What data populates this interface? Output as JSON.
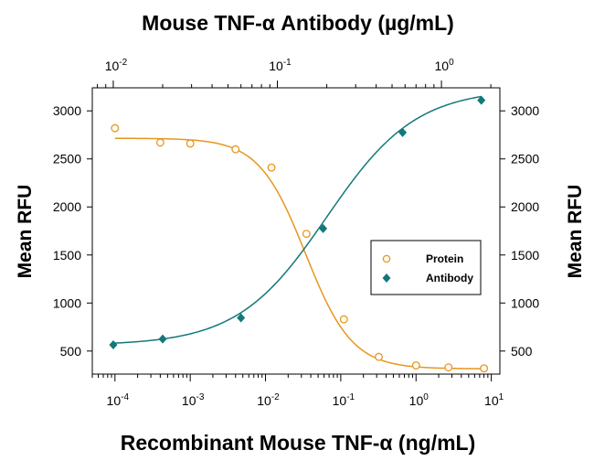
{
  "chart_data": {
    "type": "scatter",
    "title_top": "Mouse TNF-α Antibody (µg/mL)",
    "xlabel": "Recombinant Mouse TNF-α (ng/mL)",
    "ylabel_left": "Mean RFU",
    "ylabel_right": "Mean RFU",
    "x_scale": "log",
    "xlim": [
      5e-05,
      13
    ],
    "top_xlim": [
      0.00745,
      2.27
    ],
    "ylim": [
      260,
      3240
    ],
    "y_ticks": [
      500,
      1000,
      1500,
      2000,
      2500,
      3000
    ],
    "x_bottom_ticks": [
      {
        "base": "10",
        "exp": "-4",
        "value": 0.0001
      },
      {
        "base": "10",
        "exp": "-3",
        "value": 0.001
      },
      {
        "base": "10",
        "exp": "-2",
        "value": 0.01
      },
      {
        "base": "10",
        "exp": "-1",
        "value": 0.1
      },
      {
        "base": "10",
        "exp": "0",
        "value": 1
      },
      {
        "base": "10",
        "exp": "1",
        "value": 10
      }
    ],
    "x_top_ticks": [
      {
        "base": "10",
        "exp": "-2",
        "value": 0.01
      },
      {
        "base": "10",
        "exp": "-1",
        "value": 0.1
      },
      {
        "base": "10",
        "exp": "0",
        "value": 1
      }
    ],
    "grid": false,
    "legend_position": "middle-right",
    "series": [
      {
        "name": "Protein",
        "axis": "bottom",
        "marker": "open-circle",
        "color": "#E8961E",
        "points": [
          [
            0.0001,
            2820
          ],
          [
            0.0004,
            2670
          ],
          [
            0.001,
            2660
          ],
          [
            0.004,
            2600
          ],
          [
            0.012,
            2410
          ],
          [
            0.035,
            1720
          ],
          [
            0.11,
            830
          ],
          [
            0.32,
            440
          ],
          [
            1.0,
            350
          ],
          [
            2.7,
            330
          ],
          [
            8.0,
            320
          ]
        ],
        "fit": {
          "bottom": 315,
          "top": 2715,
          "ec50": 0.034,
          "hill": 1.4
        }
      },
      {
        "name": "Antibody",
        "axis": "top",
        "marker": "filled-diamond",
        "color": "#13787A",
        "points": [
          [
            0.01,
            565
          ],
          [
            0.02,
            625
          ],
          [
            0.06,
            845
          ],
          [
            0.19,
            1775
          ],
          [
            0.58,
            2775
          ],
          [
            1.75,
            3110
          ]
        ],
        "fit": {
          "bottom": 560,
          "top": 3230,
          "ec50": 0.2,
          "hill": 1.6
        }
      }
    ]
  }
}
